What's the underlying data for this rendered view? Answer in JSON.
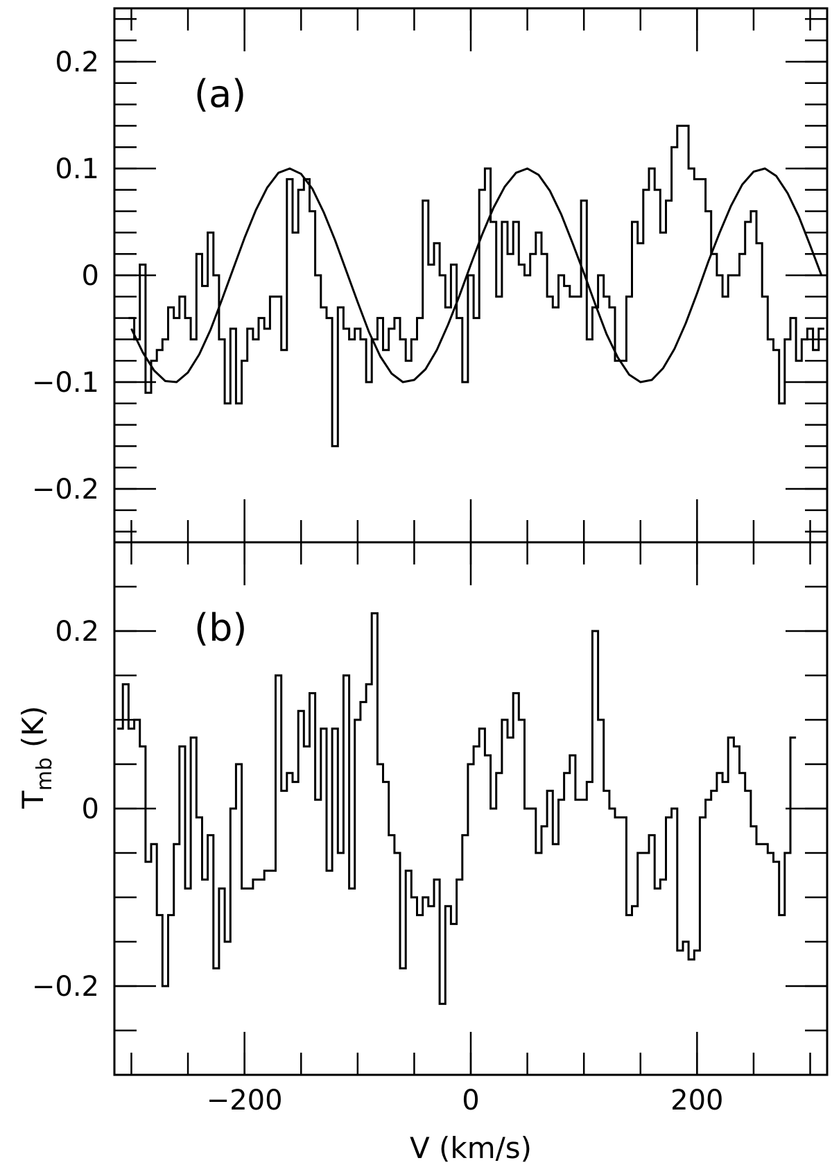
{
  "chart_data": [
    {
      "type": "line",
      "panel_label": "(a)",
      "xlim": [
        -315,
        315
      ],
      "ylim": [
        -0.25,
        0.25
      ],
      "y_ticks": [
        {
          "value": 0.2,
          "label": "0.2"
        },
        {
          "value": 0.1,
          "label": "0.1"
        },
        {
          "value": 0,
          "label": "0"
        },
        {
          "value": -0.1,
          "label": "−0.1"
        },
        {
          "value": -0.2,
          "label": "−0.2"
        }
      ],
      "y_minor_step": 0.02,
      "x_major": [
        -200,
        0,
        200
      ],
      "x_minor_step": 50,
      "grid": false,
      "series": [
        {
          "style": "step",
          "x": [
            -300,
            -295,
            -290,
            -285,
            -280,
            -275,
            -270,
            -265,
            -260,
            -255,
            -250,
            -245,
            -240,
            -235,
            -230,
            -225,
            -220,
            -215,
            -210,
            -205,
            -200,
            -195,
            -190,
            -185,
            -180,
            -175,
            -170,
            -165,
            -160,
            -155,
            -150,
            -145,
            -140,
            -135,
            -130,
            -125,
            -120,
            -115,
            -110,
            -105,
            -100,
            -95,
            -90,
            -85,
            -80,
            -75,
            -70,
            -65,
            -60,
            -55,
            -50,
            -45,
            -40,
            -35,
            -30,
            -25,
            -20,
            -15,
            -10,
            -5,
            0,
            5,
            10,
            15,
            20,
            25,
            30,
            35,
            40,
            45,
            50,
            55,
            60,
            65,
            70,
            75,
            80,
            85,
            90,
            95,
            100,
            105,
            110,
            115,
            120,
            125,
            130,
            135,
            140,
            145,
            150,
            155,
            160,
            165,
            170,
            175,
            180,
            185,
            190,
            195,
            200,
            205,
            210,
            215,
            220,
            225,
            230,
            235,
            240,
            245,
            250,
            255,
            260,
            265,
            270,
            275,
            280,
            285,
            290,
            295,
            300,
            305,
            310
          ],
          "y": [
            -0.04,
            -0.06,
            0.01,
            -0.11,
            -0.08,
            -0.07,
            -0.06,
            -0.03,
            -0.04,
            -0.02,
            -0.04,
            -0.06,
            0.02,
            -0.01,
            0.04,
            0.0,
            -0.06,
            -0.12,
            -0.05,
            -0.12,
            -0.08,
            -0.05,
            -0.06,
            -0.04,
            -0.05,
            -0.02,
            -0.02,
            -0.07,
            0.09,
            0.04,
            0.08,
            0.09,
            0.06,
            0.0,
            -0.03,
            -0.04,
            -0.16,
            -0.03,
            -0.05,
            -0.06,
            -0.05,
            -0.06,
            -0.1,
            -0.06,
            -0.04,
            -0.07,
            -0.05,
            -0.04,
            -0.06,
            -0.08,
            -0.06,
            -0.04,
            0.07,
            0.01,
            0.03,
            0.0,
            -0.03,
            0.01,
            -0.04,
            -0.1,
            0.0,
            -0.04,
            0.08,
            0.1,
            0.05,
            -0.02,
            0.05,
            0.02,
            0.05,
            0.01,
            0.0,
            0.02,
            0.04,
            0.02,
            -0.02,
            -0.03,
            0.0,
            -0.01,
            -0.02,
            -0.02,
            0.07,
            -0.06,
            -0.03,
            0.0,
            -0.02,
            -0.03,
            -0.08,
            -0.08,
            -0.02,
            0.05,
            0.03,
            0.08,
            0.1,
            0.08,
            0.04,
            0.07,
            0.12,
            0.14,
            0.14,
            0.1,
            0.09,
            0.09,
            0.06,
            0.02,
            0.0,
            -0.02,
            0.0,
            0.0,
            0.02,
            0.05,
            0.06,
            0.03,
            -0.02,
            -0.06,
            -0.07,
            -0.12,
            -0.06,
            -0.04,
            -0.08,
            -0.06,
            -0.05,
            -0.07,
            -0.05
          ]
        },
        {
          "style": "curve",
          "x": [
            -300,
            -290,
            -280,
            -270,
            -260,
            -250,
            -240,
            -230,
            -220,
            -210,
            -200,
            -190,
            -180,
            -170,
            -160,
            -150,
            -140,
            -130,
            -120,
            -110,
            -100,
            -90,
            -80,
            -70,
            -60,
            -50,
            -40,
            -30,
            -20,
            -10,
            0,
            10,
            20,
            30,
            40,
            50,
            60,
            70,
            80,
            90,
            100,
            110,
            120,
            130,
            140,
            150,
            160,
            170,
            180,
            190,
            200,
            210,
            220,
            230,
            240,
            250,
            260,
            270,
            280,
            290,
            300,
            310
          ],
          "y": [
            -0.05,
            -0.072,
            -0.089,
            -0.099,
            -0.1,
            -0.091,
            -0.074,
            -0.051,
            -0.023,
            0.006,
            0.035,
            0.061,
            0.082,
            0.096,
            0.1,
            0.095,
            0.081,
            0.059,
            0.033,
            0.004,
            -0.025,
            -0.053,
            -0.076,
            -0.092,
            -0.1,
            -0.098,
            -0.088,
            -0.07,
            -0.046,
            -0.019,
            0.01,
            0.038,
            0.063,
            0.083,
            0.096,
            0.1,
            0.094,
            0.079,
            0.057,
            0.03,
            0.002,
            -0.027,
            -0.055,
            -0.077,
            -0.093,
            -0.1,
            -0.098,
            -0.087,
            -0.069,
            -0.045,
            -0.017,
            0.013,
            0.04,
            0.065,
            0.085,
            0.097,
            0.1,
            0.093,
            0.077,
            0.055,
            0.028,
            0.0
          ]
        }
      ]
    },
    {
      "type": "line",
      "panel_label": "(b)",
      "xlabel": "V (km/s)",
      "ylabel_main": "T",
      "ylabel_sub": "mb",
      "ylabel_unit": "(K)",
      "xlim": [
        -315,
        315
      ],
      "ylim": [
        -0.3,
        0.3
      ],
      "y_ticks": [
        {
          "value": 0.2,
          "label": "0.2"
        },
        {
          "value": 0,
          "label": "0"
        },
        {
          "value": -0.2,
          "label": "−0.2"
        }
      ],
      "y_minor_step": 0.05,
      "x_major": [
        -200,
        0,
        200
      ],
      "x_minor_step": 50,
      "x_tick_labels": [
        "−200",
        "0",
        "200"
      ],
      "grid": false,
      "series": [
        {
          "style": "step",
          "x": [
            -310,
            -305,
            -300,
            -295,
            -290,
            -285,
            -280,
            -275,
            -270,
            -265,
            -260,
            -255,
            -250,
            -245,
            -240,
            -235,
            -230,
            -225,
            -220,
            -215,
            -210,
            -205,
            -200,
            -195,
            -190,
            -185,
            -180,
            -175,
            -170,
            -165,
            -160,
            -155,
            -150,
            -145,
            -140,
            -135,
            -130,
            -125,
            -120,
            -115,
            -110,
            -105,
            -100,
            -95,
            -90,
            -85,
            -80,
            -75,
            -70,
            -65,
            -60,
            -55,
            -50,
            -45,
            -40,
            -35,
            -30,
            -25,
            -20,
            -15,
            -10,
            -5,
            0,
            5,
            10,
            15,
            20,
            25,
            30,
            35,
            40,
            45,
            50,
            55,
            60,
            65,
            70,
            75,
            80,
            85,
            90,
            95,
            100,
            105,
            110,
            115,
            120,
            125,
            130,
            135,
            140,
            145,
            150,
            155,
            160,
            165,
            170,
            175,
            180,
            185,
            190,
            195,
            200,
            205,
            210,
            215,
            220,
            225,
            230,
            235,
            240,
            245,
            250,
            255,
            260,
            265,
            270,
            275,
            280,
            285
          ],
          "y": [
            0.09,
            0.14,
            0.09,
            0.1,
            0.07,
            -0.06,
            -0.04,
            -0.12,
            -0.2,
            -0.12,
            -0.04,
            0.07,
            -0.09,
            0.08,
            -0.01,
            -0.08,
            -0.03,
            -0.18,
            -0.09,
            -0.15,
            0.0,
            0.05,
            -0.09,
            -0.09,
            -0.08,
            -0.08,
            -0.07,
            -0.07,
            0.15,
            0.02,
            0.04,
            0.03,
            0.11,
            0.07,
            0.13,
            0.01,
            0.09,
            -0.07,
            0.09,
            -0.05,
            0.15,
            -0.09,
            0.1,
            0.12,
            0.14,
            0.22,
            0.05,
            0.03,
            -0.03,
            -0.05,
            -0.18,
            -0.07,
            -0.1,
            -0.12,
            -0.1,
            -0.11,
            -0.08,
            -0.22,
            -0.11,
            -0.13,
            -0.08,
            -0.03,
            0.05,
            0.07,
            0.09,
            0.06,
            0.0,
            0.04,
            0.1,
            0.08,
            0.13,
            0.1,
            0.0,
            0.0,
            -0.05,
            -0.02,
            0.02,
            -0.04,
            0.01,
            0.04,
            0.06,
            0.01,
            0.01,
            0.03,
            0.2,
            0.1,
            0.02,
            0.0,
            -0.01,
            -0.01,
            -0.12,
            -0.11,
            -0.05,
            -0.05,
            -0.03,
            -0.09,
            -0.08,
            -0.01,
            0.0,
            -0.16,
            -0.15,
            -0.17,
            -0.16,
            -0.01,
            0.01,
            0.02,
            0.04,
            0.03,
            0.08,
            0.07,
            0.04,
            0.02,
            -0.02,
            -0.04,
            -0.04,
            -0.05,
            -0.06,
            -0.12,
            -0.05,
            0.08
          ]
        }
      ]
    }
  ]
}
